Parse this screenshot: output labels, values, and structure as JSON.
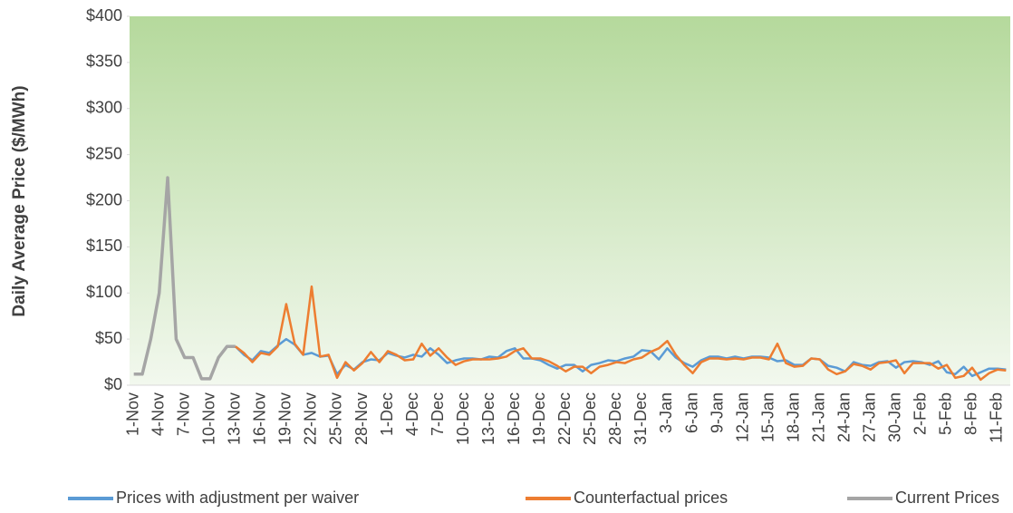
{
  "chart_data": {
    "type": "line",
    "y_label": "Daily Average Price ($/MWh)",
    "categories": [
      "1-Nov",
      null,
      null,
      "4-Nov",
      null,
      null,
      "7-Nov",
      null,
      null,
      "10-Nov",
      null,
      null,
      "13-Nov",
      null,
      null,
      "16-Nov",
      null,
      null,
      "19-Nov",
      null,
      null,
      "22-Nov",
      null,
      null,
      "25-Nov",
      null,
      null,
      "28-Nov",
      null,
      null,
      "1-Dec",
      null,
      null,
      "4-Dec",
      null,
      null,
      "7-Dec",
      null,
      null,
      "10-Dec",
      null,
      null,
      "13-Dec",
      null,
      null,
      "16-Dec",
      null,
      null,
      "19-Dec",
      null,
      null,
      "22-Dec",
      null,
      null,
      "25-Dec",
      null,
      null,
      "28-Dec",
      null,
      null,
      "31-Dec",
      null,
      null,
      "3-Jan",
      null,
      null,
      "6-Jan",
      null,
      null,
      "9-Jan",
      null,
      null,
      "12-Jan",
      null,
      null,
      "15-Jan",
      null,
      null,
      "18-Jan",
      null,
      null,
      "21-Jan",
      null,
      null,
      "24-Jan",
      null,
      null,
      "27-Jan",
      null,
      null,
      "30-Jan",
      null,
      null,
      "2-Feb",
      null,
      null,
      "5-Feb",
      null,
      null,
      "8-Feb",
      null,
      null,
      "11-Feb",
      null
    ],
    "series": [
      {
        "name": "Prices with adjustment per waiver",
        "color": "#5b9bd5",
        "values": [
          null,
          null,
          null,
          null,
          null,
          null,
          null,
          null,
          null,
          null,
          null,
          null,
          42,
          33,
          27,
          37,
          35,
          43,
          50,
          44,
          33,
          35,
          31,
          32,
          12,
          22,
          17,
          25,
          28,
          27,
          35,
          32,
          30,
          33,
          31,
          40,
          33,
          24,
          27,
          29,
          29,
          28,
          31,
          30,
          37,
          40,
          29,
          29,
          27,
          22,
          18,
          22,
          22,
          15,
          22,
          24,
          27,
          26,
          29,
          31,
          38,
          37,
          28,
          40,
          30,
          24,
          20,
          27,
          31,
          31,
          29,
          31,
          29,
          31,
          31,
          30,
          26,
          27,
          22,
          22,
          29,
          28,
          21,
          19,
          15,
          25,
          22,
          21,
          25,
          26,
          19,
          25,
          26,
          25,
          22,
          26,
          14,
          12,
          20,
          10,
          14,
          18,
          18,
          17
        ]
      },
      {
        "name": "Counterfactual prices",
        "color": "#ed7d31",
        "values": [
          null,
          null,
          null,
          null,
          null,
          null,
          null,
          null,
          null,
          null,
          null,
          null,
          42,
          35,
          25,
          35,
          33,
          42,
          88,
          45,
          33,
          107,
          31,
          33,
          8,
          25,
          16,
          24,
          36,
          25,
          37,
          33,
          27,
          28,
          45,
          32,
          40,
          30,
          22,
          26,
          28,
          28,
          28,
          29,
          31,
          37,
          40,
          29,
          29,
          26,
          21,
          15,
          20,
          20,
          13,
          20,
          22,
          25,
          24,
          28,
          30,
          36,
          40,
          48,
          33,
          22,
          13,
          25,
          29,
          29,
          28,
          29,
          28,
          30,
          30,
          28,
          45,
          24,
          20,
          21,
          29,
          28,
          17,
          12,
          15,
          23,
          21,
          17,
          24,
          25,
          27,
          13,
          24,
          24,
          24,
          18,
          22,
          8,
          10,
          19,
          6,
          13,
          17,
          16
        ]
      },
      {
        "name": "Current Prices",
        "color": "#a5a5a5",
        "values": [
          12,
          12,
          50,
          100,
          225,
          50,
          30,
          30,
          7,
          7,
          30,
          42,
          42,
          null,
          null,
          null,
          null,
          null,
          null,
          null,
          null,
          null,
          null,
          null,
          null,
          null,
          null,
          null,
          null,
          null,
          null,
          null,
          null,
          null,
          null,
          null,
          null,
          null,
          null,
          null,
          null,
          null,
          null,
          null,
          null,
          null,
          null,
          null,
          null,
          null,
          null,
          null,
          null,
          null,
          null,
          null,
          null,
          null,
          null,
          null,
          null,
          null,
          null,
          null,
          null,
          null,
          null,
          null,
          null,
          null,
          null,
          null,
          null,
          null,
          null,
          null,
          null,
          null,
          null,
          null,
          null,
          null,
          null,
          null,
          null,
          null,
          null,
          null,
          null,
          null,
          null,
          null,
          null,
          null,
          null,
          null,
          null,
          null,
          null,
          null,
          null,
          null,
          null,
          null
        ]
      }
    ],
    "ylim": [
      0,
      400
    ],
    "yticks": [
      {
        "value": 0,
        "label": "$0"
      },
      {
        "value": 50,
        "label": "$50"
      },
      {
        "value": 100,
        "label": "$100"
      },
      {
        "value": 150,
        "label": "$150"
      },
      {
        "value": 200,
        "label": "$200"
      },
      {
        "value": 250,
        "label": "$250"
      },
      {
        "value": 300,
        "label": "$300"
      },
      {
        "value": 350,
        "label": "$350"
      },
      {
        "value": 400,
        "label": "$400"
      }
    ],
    "legend": "bottom"
  }
}
